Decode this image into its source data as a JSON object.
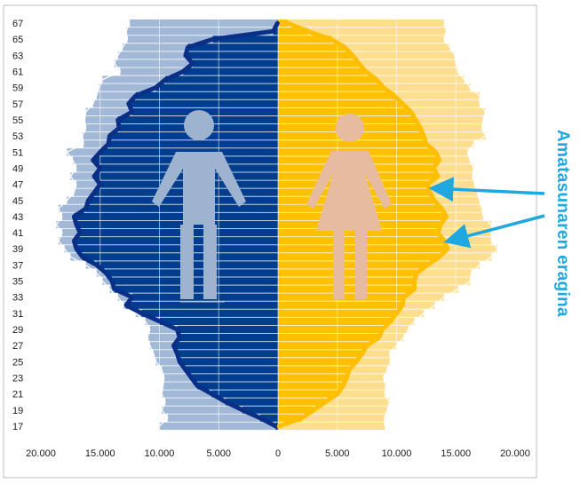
{
  "chart_data": {
    "type": "population-pyramid",
    "y_ticks": [
      17,
      19,
      21,
      23,
      25,
      27,
      29,
      31,
      33,
      35,
      37,
      39,
      41,
      43,
      45,
      47,
      49,
      51,
      53,
      55,
      57,
      59,
      61,
      63,
      65,
      67
    ],
    "x_ticks": [
      "20.000",
      "15.000",
      "10.000",
      "5.000",
      "0",
      "5.000",
      "10.000",
      "15.000",
      "20.000"
    ],
    "x_range": [
      -20000,
      20000
    ],
    "y_range": [
      16,
      68
    ],
    "grid": true,
    "ages": [
      17,
      18,
      19,
      20,
      21,
      22,
      23,
      24,
      25,
      26,
      27,
      28,
      29,
      30,
      31,
      32,
      33,
      34,
      35,
      36,
      37,
      38,
      39,
      40,
      41,
      42,
      43,
      44,
      45,
      46,
      47,
      48,
      49,
      50,
      51,
      52,
      53,
      54,
      55,
      56,
      57,
      58,
      59,
      60,
      61,
      62,
      63,
      64,
      65,
      66,
      67
    ],
    "series": [
      {
        "side": "left",
        "color": "#a1b8d6",
        "values": [
          10000,
          9300,
          9800,
          9500,
          9800,
          9700,
          9600,
          9800,
          10300,
          10500,
          10800,
          11000,
          10800,
          11200,
          12000,
          13000,
          13500,
          14200,
          14800,
          15300,
          16200,
          17500,
          18000,
          18500,
          18200,
          18700,
          18200,
          18500,
          17800,
          17200,
          17000,
          17500,
          17000,
          17300,
          17800,
          16400,
          16500,
          16200,
          16300,
          16200,
          15600,
          15300,
          15100,
          14800,
          13300,
          13800,
          13500,
          13100,
          12700,
          12800,
          12500
        ]
      },
      {
        "side": "left",
        "color": "#003d8f",
        "values": [
          200,
          1500,
          3000,
          4400,
          5600,
          6800,
          7300,
          7800,
          8300,
          8500,
          8800,
          8300,
          8500,
          10000,
          11500,
          12800,
          12300,
          13800,
          14000,
          14500,
          15300,
          16500,
          17000,
          17200,
          16700,
          17000,
          17200,
          16200,
          16000,
          15500,
          15000,
          15500,
          15000,
          15600,
          15000,
          14300,
          14200,
          13400,
          13500,
          12300,
          12600,
          12000,
          10300,
          9500,
          8000,
          7200,
          7800,
          7600,
          5500,
          400,
          50
        ]
      },
      {
        "side": "right",
        "color": "#fdde8e",
        "values": [
          9000,
          9000,
          9200,
          9400,
          9000,
          9100,
          8900,
          9200,
          9500,
          9400,
          10000,
          10600,
          11000,
          11500,
          12300,
          13200,
          14000,
          15200,
          16200,
          16300,
          17000,
          18000,
          18500,
          18000,
          18000,
          18000,
          17300,
          17200,
          17000,
          16800,
          16600,
          16400,
          16500,
          16200,
          16000,
          16500,
          17500,
          17200,
          17300,
          17500,
          17000,
          17000,
          16200,
          15700,
          15200,
          15000,
          14900,
          14500,
          14000,
          14200,
          14000
        ]
      },
      {
        "side": "right",
        "color": "#ffc000",
        "values": [
          100,
          2000,
          3000,
          4000,
          5000,
          5500,
          5800,
          6000,
          6600,
          7100,
          7500,
          8500,
          8800,
          9500,
          10000,
          10500,
          10600,
          11500,
          11500,
          11700,
          12600,
          13600,
          14300,
          14000,
          13500,
          13700,
          14200,
          13800,
          13200,
          12800,
          12600,
          13500,
          13100,
          13600,
          13300,
          12500,
          12300,
          12000,
          11600,
          11200,
          10500,
          9800,
          8900,
          8300,
          7400,
          6800,
          6300,
          5600,
          4500,
          2500,
          800
        ]
      }
    ]
  },
  "icons": {
    "male": "male-figure-icon",
    "female": "female-figure-icon"
  },
  "colors": {
    "male_base": "#a1b8d6",
    "male_area": "#003d8f",
    "female_base": "#fdde8e",
    "female_area": "#ffc000",
    "male_icon": "#9eb3cf",
    "female_icon": "#e7bba0",
    "arrow": "#1fa8df"
  },
  "annotation": {
    "label": "Amatasunaren eragina"
  }
}
